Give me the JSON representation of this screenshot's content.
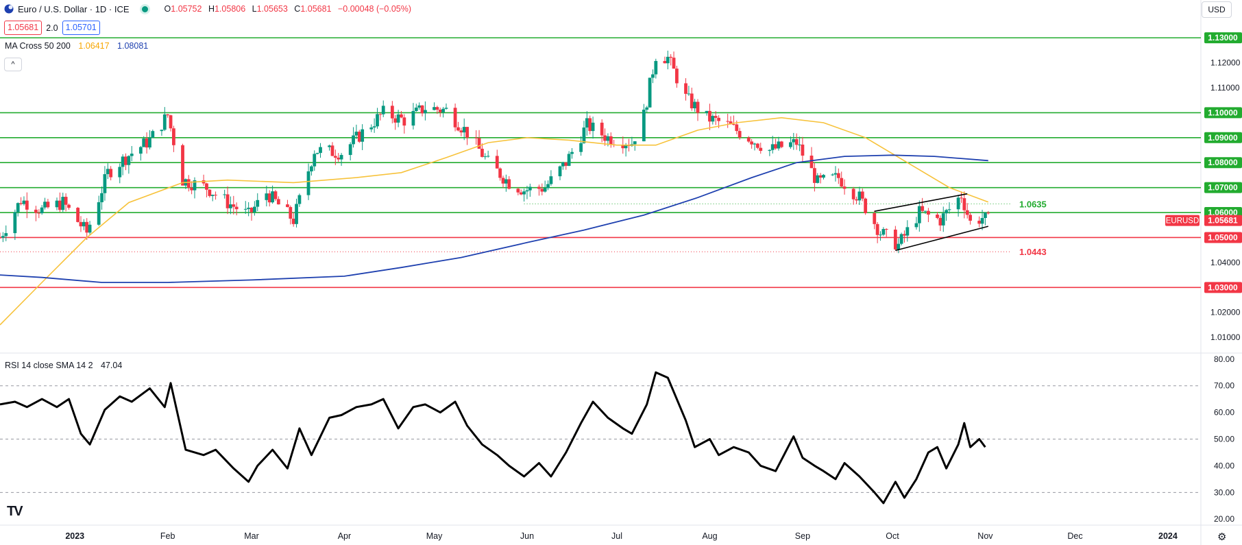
{
  "header": {
    "title": "Euro / U.S. Dollar · 1D · ICE",
    "ohlc": [
      {
        "k": "O",
        "v": "1.05752"
      },
      {
        "k": "H",
        "v": "1.05806"
      },
      {
        "k": "L",
        "v": "1.05653"
      },
      {
        "k": "C",
        "v": "1.05681"
      },
      {
        "k": "",
        "v": "−0.00048 (−0.05%)"
      }
    ],
    "bid": "1.05681",
    "spread": "2.0",
    "ask": "1.05701",
    "currency": "USD"
  },
  "indicators": {
    "ma_label": "MA Cross 50 200",
    "ma50_value": "1.06417",
    "ma200_value": "1.08081",
    "rsi_label": "RSI 14 close SMA 14 2",
    "rsi_value": "47.04"
  },
  "colors": {
    "up": "#089981",
    "down": "#f23645",
    "support_green": "#22ab2f",
    "resistance_red": "#f23645",
    "ma50": "#f7c23a",
    "ma200": "#1e40af",
    "rsi": "#000000"
  },
  "chart_data": [
    {
      "type": "candlestick",
      "symbol": "EURUSD",
      "last_price": "1.05681",
      "ylim": [
        1.004,
        1.138
      ],
      "y_ticks": [
        "1.13000",
        "1.12000",
        "1.11000",
        "1.10000",
        "1.09000",
        "1.08000",
        "1.07000",
        "1.06000",
        "1.05000",
        "1.04000",
        "1.03000",
        "1.02000",
        "1.01000"
      ],
      "x_labels": [
        {
          "label": "2023",
          "date": "2023-01-01"
        },
        {
          "label": "Feb",
          "date": "2023-02-01"
        },
        {
          "label": "Mar",
          "date": "2023-03-01"
        },
        {
          "label": "Apr",
          "date": "2023-04-01"
        },
        {
          "label": "May",
          "date": "2023-05-01"
        },
        {
          "label": "Jun",
          "date": "2023-06-01"
        },
        {
          "label": "Jul",
          "date": "2023-07-01"
        },
        {
          "label": "Aug",
          "date": "2023-08-01"
        },
        {
          "label": "Sep",
          "date": "2023-09-01"
        },
        {
          "label": "Oct",
          "date": "2023-10-01"
        },
        {
          "label": "Nov",
          "date": "2023-11-01"
        },
        {
          "label": "Dec",
          "date": "2023-12-01"
        },
        {
          "label": "2024",
          "date": "2024-01-01"
        }
      ],
      "x_range": [
        "2022-12-07",
        "2024-01-12"
      ],
      "horizontal_levels": [
        {
          "price": 1.13,
          "color": "green",
          "label": "1.13000"
        },
        {
          "price": 1.1,
          "color": "green",
          "label": "1.10000"
        },
        {
          "price": 1.09,
          "color": "green",
          "label": "1.09000"
        },
        {
          "price": 1.08,
          "color": "green",
          "label": "1.08000"
        },
        {
          "price": 1.07,
          "color": "green",
          "label": "1.07000"
        },
        {
          "price": 1.06,
          "color": "green",
          "label": "1.06000"
        },
        {
          "price": 1.05,
          "color": "red",
          "label": "1.05000"
        },
        {
          "price": 1.03,
          "color": "red",
          "label": "1.03000"
        }
      ],
      "annotations": [
        {
          "text": "1.0635",
          "price": 1.0635,
          "color": "green",
          "dotted_from": "2023-05-31"
        },
        {
          "text": "1.0443",
          "price": 1.0443,
          "color": "red",
          "dotted_from": "2022-12-07"
        }
      ],
      "channel": {
        "upper": [
          [
            "2023-09-25",
            1.0605
          ],
          [
            "2023-10-26",
            1.0675
          ]
        ],
        "lower": [
          [
            "2023-10-02",
            1.0448
          ],
          [
            "2023-11-02",
            1.0545
          ]
        ]
      },
      "ohlc_close_path": [
        [
          "2022-12-07",
          1.05
        ],
        [
          "2022-12-14",
          1.065
        ],
        [
          "2022-12-21",
          1.061
        ],
        [
          "2022-12-28",
          1.064
        ],
        [
          "2023-01-05",
          1.052
        ],
        [
          "2023-01-12",
          1.076
        ],
        [
          "2023-01-19",
          1.083
        ],
        [
          "2023-01-26",
          1.089
        ],
        [
          "2023-02-01",
          1.099
        ],
        [
          "2023-02-06",
          1.073
        ],
        [
          "2023-02-14",
          1.07
        ],
        [
          "2023-02-21",
          1.064
        ],
        [
          "2023-02-28",
          1.059
        ],
        [
          "2023-03-06",
          1.068
        ],
        [
          "2023-03-15",
          1.057
        ],
        [
          "2023-03-22",
          1.085
        ],
        [
          "2023-03-31",
          1.084
        ],
        [
          "2023-04-07",
          1.092
        ],
        [
          "2023-04-14",
          1.1
        ],
        [
          "2023-04-21",
          1.097
        ],
        [
          "2023-04-28",
          1.102
        ],
        [
          "2023-05-05",
          1.101
        ],
        [
          "2023-05-12",
          1.092
        ],
        [
          "2023-05-19",
          1.08
        ],
        [
          "2023-05-26",
          1.072
        ],
        [
          "2023-05-31",
          1.069
        ],
        [
          "2023-06-07",
          1.07
        ],
        [
          "2023-06-14",
          1.08
        ],
        [
          "2023-06-21",
          1.095
        ],
        [
          "2023-06-28",
          1.09
        ],
        [
          "2023-07-06",
          1.088
        ],
        [
          "2023-07-10",
          1.099
        ],
        [
          "2023-07-14",
          1.123
        ],
        [
          "2023-07-18",
          1.122
        ],
        [
          "2023-07-24",
          1.106
        ],
        [
          "2023-07-31",
          1.098
        ],
        [
          "2023-08-07",
          1.095
        ],
        [
          "2023-08-14",
          1.09
        ],
        [
          "2023-08-21",
          1.085
        ],
        [
          "2023-08-30",
          1.088
        ],
        [
          "2023-09-06",
          1.072
        ],
        [
          "2023-09-13",
          1.074
        ],
        [
          "2023-09-20",
          1.066
        ],
        [
          "2023-09-27",
          1.052
        ],
        [
          "2023-10-03",
          1.047
        ],
        [
          "2023-10-10",
          1.06
        ],
        [
          "2023-10-17",
          1.057
        ],
        [
          "2023-10-24",
          1.067
        ],
        [
          "2023-10-27",
          1.056
        ],
        [
          "2023-10-31",
          1.058
        ],
        [
          "2023-11-02",
          1.05681
        ]
      ],
      "ma50": [
        [
          "2022-12-07",
          1.015
        ],
        [
          "2022-12-21",
          1.032
        ],
        [
          "2023-01-05",
          1.05
        ],
        [
          "2023-01-19",
          1.064
        ],
        [
          "2023-02-06",
          1.072
        ],
        [
          "2023-02-21",
          1.073
        ],
        [
          "2023-03-15",
          1.072
        ],
        [
          "2023-04-05",
          1.074
        ],
        [
          "2023-04-20",
          1.076
        ],
        [
          "2023-05-05",
          1.082
        ],
        [
          "2023-05-19",
          1.088
        ],
        [
          "2023-06-01",
          1.09
        ],
        [
          "2023-06-15",
          1.089
        ],
        [
          "2023-07-01",
          1.087
        ],
        [
          "2023-07-14",
          1.087
        ],
        [
          "2023-07-28",
          1.093
        ],
        [
          "2023-08-10",
          1.096
        ],
        [
          "2023-08-25",
          1.098
        ],
        [
          "2023-09-08",
          1.096
        ],
        [
          "2023-09-22",
          1.09
        ],
        [
          "2023-10-06",
          1.08
        ],
        [
          "2023-10-20",
          1.07
        ],
        [
          "2023-11-02",
          1.0642
        ]
      ],
      "ma200": [
        [
          "2022-12-07",
          1.035
        ],
        [
          "2022-12-21",
          1.034
        ],
        [
          "2023-01-10",
          1.032
        ],
        [
          "2023-02-01",
          1.032
        ],
        [
          "2023-03-01",
          1.033
        ],
        [
          "2023-04-01",
          1.0345
        ],
        [
          "2023-04-20",
          1.038
        ],
        [
          "2023-05-10",
          1.042
        ],
        [
          "2023-06-01",
          1.048
        ],
        [
          "2023-06-20",
          1.053
        ],
        [
          "2023-07-10",
          1.059
        ],
        [
          "2023-07-28",
          1.066
        ],
        [
          "2023-08-15",
          1.074
        ],
        [
          "2023-08-30",
          1.08
        ],
        [
          "2023-09-15",
          1.0825
        ],
        [
          "2023-10-01",
          1.083
        ],
        [
          "2023-10-15",
          1.0825
        ],
        [
          "2023-11-02",
          1.0808
        ]
      ]
    },
    {
      "type": "line",
      "title": "RSI 14 close SMA 14 2",
      "ylim": [
        18,
        82
      ],
      "y_ticks": [
        "80.00",
        "70.00",
        "60.00",
        "50.00",
        "40.00",
        "30.00",
        "20.00"
      ],
      "bands": [
        70,
        50,
        30
      ],
      "values": [
        [
          "2022-12-07",
          63
        ],
        [
          "2022-12-12",
          64
        ],
        [
          "2022-12-16",
          62
        ],
        [
          "2022-12-21",
          65
        ],
        [
          "2022-12-26",
          62
        ],
        [
          "2022-12-30",
          65
        ],
        [
          "2023-01-03",
          52
        ],
        [
          "2023-01-06",
          48
        ],
        [
          "2023-01-11",
          61
        ],
        [
          "2023-01-16",
          66
        ],
        [
          "2023-01-20",
          64
        ],
        [
          "2023-01-26",
          69
        ],
        [
          "2023-01-31",
          62
        ],
        [
          "2023-02-02",
          71
        ],
        [
          "2023-02-07",
          46
        ],
        [
          "2023-02-13",
          44
        ],
        [
          "2023-02-17",
          46
        ],
        [
          "2023-02-23",
          39
        ],
        [
          "2023-02-28",
          34
        ],
        [
          "2023-03-03",
          40
        ],
        [
          "2023-03-08",
          46
        ],
        [
          "2023-03-13",
          39
        ],
        [
          "2023-03-17",
          54
        ],
        [
          "2023-03-21",
          44
        ],
        [
          "2023-03-27",
          58
        ],
        [
          "2023-03-31",
          59
        ],
        [
          "2023-04-05",
          62
        ],
        [
          "2023-04-10",
          63
        ],
        [
          "2023-04-14",
          65
        ],
        [
          "2023-04-19",
          54
        ],
        [
          "2023-04-24",
          62
        ],
        [
          "2023-04-28",
          63
        ],
        [
          "2023-05-03",
          60
        ],
        [
          "2023-05-08",
          64
        ],
        [
          "2023-05-12",
          55
        ],
        [
          "2023-05-17",
          48
        ],
        [
          "2023-05-22",
          44
        ],
        [
          "2023-05-26",
          40
        ],
        [
          "2023-05-31",
          36
        ],
        [
          "2023-06-05",
          41
        ],
        [
          "2023-06-09",
          36
        ],
        [
          "2023-06-14",
          45
        ],
        [
          "2023-06-19",
          56
        ],
        [
          "2023-06-23",
          64
        ],
        [
          "2023-06-28",
          58
        ],
        [
          "2023-07-03",
          54
        ],
        [
          "2023-07-06",
          52
        ],
        [
          "2023-07-11",
          63
        ],
        [
          "2023-07-14",
          75
        ],
        [
          "2023-07-18",
          73
        ],
        [
          "2023-07-24",
          57
        ],
        [
          "2023-07-27",
          47
        ],
        [
          "2023-08-01",
          50
        ],
        [
          "2023-08-04",
          44
        ],
        [
          "2023-08-09",
          47
        ],
        [
          "2023-08-14",
          45
        ],
        [
          "2023-08-18",
          40
        ],
        [
          "2023-08-23",
          38
        ],
        [
          "2023-08-29",
          51
        ],
        [
          "2023-09-01",
          43
        ],
        [
          "2023-09-05",
          40
        ],
        [
          "2023-09-08",
          38
        ],
        [
          "2023-09-12",
          35
        ],
        [
          "2023-09-15",
          41
        ],
        [
          "2023-09-20",
          36
        ],
        [
          "2023-09-25",
          30
        ],
        [
          "2023-09-28",
          26
        ],
        [
          "2023-10-02",
          34
        ],
        [
          "2023-10-05",
          28
        ],
        [
          "2023-10-09",
          35
        ],
        [
          "2023-10-13",
          45
        ],
        [
          "2023-10-16",
          47
        ],
        [
          "2023-10-19",
          39
        ],
        [
          "2023-10-23",
          48
        ],
        [
          "2023-10-25",
          56
        ],
        [
          "2023-10-27",
          47
        ],
        [
          "2023-10-30",
          50
        ],
        [
          "2023-11-01",
          47
        ]
      ]
    }
  ],
  "ui": {
    "collapse_glyph": "^",
    "tv_logo": "TV",
    "settings_icon": "gear-icon",
    "settings_glyph": "⚙"
  }
}
